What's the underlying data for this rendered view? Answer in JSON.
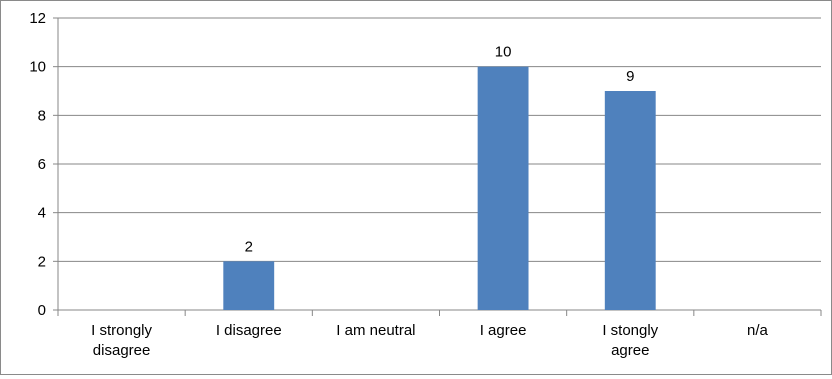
{
  "chart_data": {
    "type": "bar",
    "title": "",
    "xlabel": "",
    "ylabel": "",
    "categories": [
      "I strongly disagree",
      "I disagree",
      "I am neutral",
      "I agree",
      "I stongly agree",
      "n/a"
    ],
    "category_lines": [
      [
        "I strongly",
        "disagree"
      ],
      [
        "I disagree"
      ],
      [
        "I am neutral"
      ],
      [
        "I agree"
      ],
      [
        "I stongly",
        "agree"
      ],
      [
        "n/a"
      ]
    ],
    "values": [
      0,
      2,
      0,
      10,
      9,
      0
    ],
    "data_labels": [
      "",
      "2",
      "",
      "10",
      "9",
      ""
    ],
    "ylim": [
      0,
      12
    ],
    "yticks": [
      0,
      2,
      4,
      6,
      8,
      10,
      12
    ],
    "grid": true,
    "legend": "none",
    "bar_color": "#4f81bd"
  }
}
